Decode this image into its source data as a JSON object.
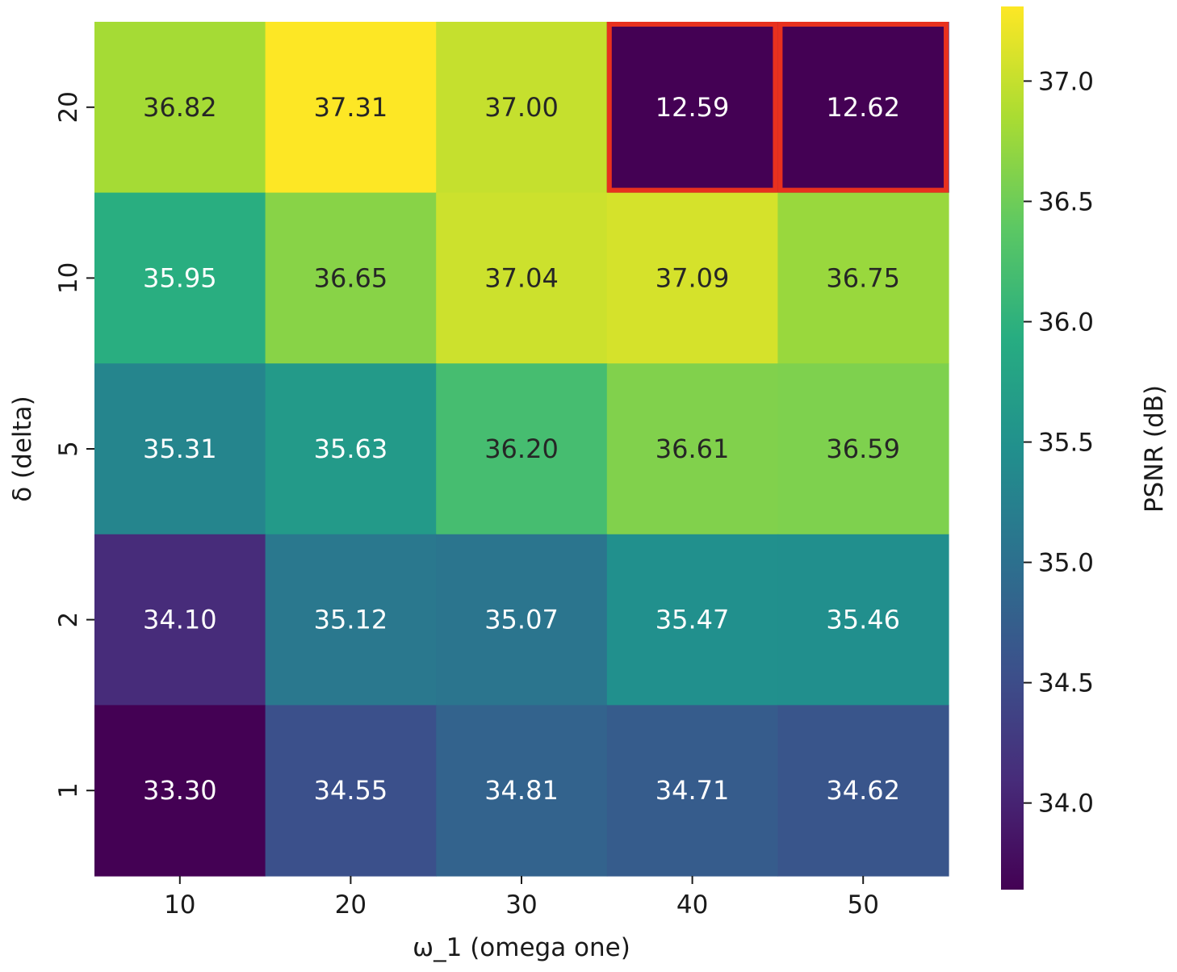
{
  "chart_data": {
    "type": "heatmap",
    "xlabel": "ω_1 (omega one)",
    "ylabel": "δ (delta)",
    "x_categories": [
      "10",
      "20",
      "30",
      "40",
      "50"
    ],
    "y_categories": [
      "20",
      "10",
      "5",
      "2",
      "1"
    ],
    "values": [
      [
        36.82,
        37.31,
        37.0,
        12.59,
        12.62
      ],
      [
        35.95,
        36.65,
        37.04,
        37.09,
        36.75
      ],
      [
        35.31,
        35.63,
        36.2,
        36.61,
        36.59
      ],
      [
        34.1,
        35.12,
        35.07,
        35.47,
        35.46
      ],
      [
        33.3,
        34.55,
        34.81,
        34.71,
        34.62
      ]
    ],
    "value_labels": [
      [
        "36.82",
        "37.31",
        "37.00",
        "12.59",
        "12.62"
      ],
      [
        "35.95",
        "36.65",
        "37.04",
        "37.09",
        "36.75"
      ],
      [
        "35.31",
        "35.63",
        "36.20",
        "36.61",
        "36.59"
      ],
      [
        "34.10",
        "35.12",
        "35.07",
        "35.47",
        "35.46"
      ],
      [
        "33.30",
        "34.55",
        "34.81",
        "34.71",
        "34.62"
      ]
    ],
    "colormap": "viridis",
    "color_range": [
      33.64,
      37.31
    ],
    "highlighted_cells": [
      [
        0,
        3
      ],
      [
        0,
        4
      ]
    ],
    "highlight_color": "#e8311e",
    "colorbar": {
      "label": "PSNR (dB)",
      "ticks": [
        34.0,
        34.5,
        35.0,
        35.5,
        36.0,
        36.5,
        37.0
      ],
      "tick_labels": [
        "34.0",
        "34.5",
        "35.0",
        "35.5",
        "36.0",
        "36.5",
        "37.0"
      ]
    }
  }
}
